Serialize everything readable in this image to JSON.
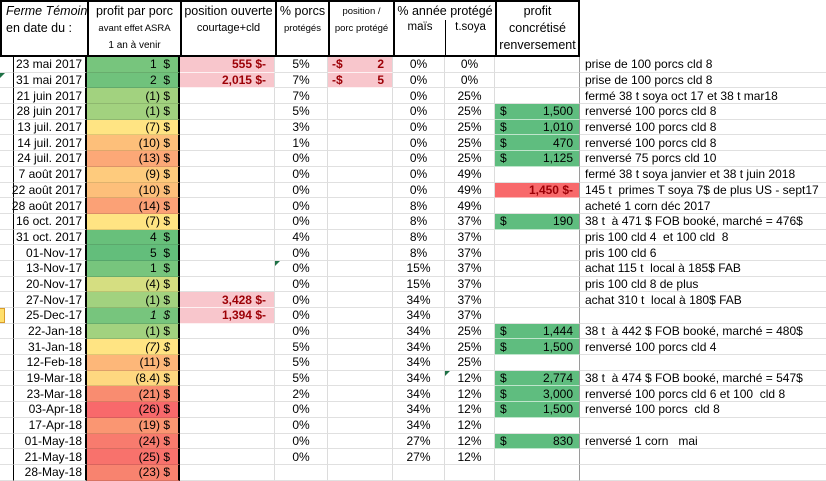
{
  "header": {
    "title": "Ferme Témoin",
    "subtitle": "en date du :",
    "profit_l1": "profit par porc",
    "profit_l2": "avant effet ASRA",
    "profit_l3": "1 an à venir",
    "position_l1": "position ouverte",
    "position_l2": "courtage+cld",
    "pct_l1": "% porcs",
    "pct_l2": "protégés",
    "ppp_l1": "position /",
    "ppp_l2": "porc protégé",
    "year_l1": "% année protégé",
    "corn_label": "maïs",
    "soya_label": "t.soya",
    "real_l1": "profit",
    "real_l2": "concrétisé",
    "real_l3": "renversement"
  },
  "symbols": {
    "currency": "$",
    "negative_currency": "-$"
  },
  "colors": {
    "pink_bg": "#F8C6CC",
    "negative_text": "#9C0006",
    "gain_bg": "#5FBD7F",
    "loss_bg": "#F8696B",
    "border": "#000000",
    "flag_green": "#1E7145",
    "marker_yellow": "#FFDF6B"
  },
  "rows": [
    {
      "date": "23 mai 2017",
      "profit": "1  $",
      "profit_color": "#77C57D",
      "open_position": "555 $-",
      "pct_pigs": "5%",
      "pos_per_pig": "2",
      "corn": "0%",
      "soya": "0%",
      "note": "prise de 100 porcs cld 8"
    },
    {
      "date": "31 mai 2017",
      "profit": "2  $",
      "profit_color": "#70C27C",
      "open_position": "2,015 $-",
      "pct_pigs": "7%",
      "pos_per_pig": "5",
      "corn": "0%",
      "soya": "0%",
      "flag_a": true,
      "note": "prise de 100 porcs cld 8"
    },
    {
      "date": "21 juin 2017",
      "profit": "(1) $",
      "profit_color": "#A2D27F",
      "pct_pigs": "7%",
      "corn": "0%",
      "soya": "25%",
      "note": "fermé 38 t soya oct 17 et 38 t mar18"
    },
    {
      "date": "28 juin 2017",
      "profit": "(1) $",
      "profit_color": "#A2D27F",
      "pct_pigs": "5%",
      "corn": "0%",
      "soya": "25%",
      "gain": "1,500",
      "note": "renversé 100 porcs cld 8"
    },
    {
      "date": "13 juil. 2017",
      "profit": "(7) $",
      "profit_color": "#FFE483",
      "pct_pigs": "3%",
      "corn": "0%",
      "soya": "25%",
      "gain": "1,010",
      "note": "renversé 100 porcs cld 8"
    },
    {
      "date": "14 juil. 2017",
      "profit": "(10) $",
      "profit_color": "#FDBF7A",
      "pct_pigs": "1%",
      "corn": "0%",
      "soya": "25%",
      "gain": "470",
      "note": "renversé 100 porcs cld 8"
    },
    {
      "date": "24 juil. 2017",
      "profit": "(13) $",
      "profit_color": "#FCA877",
      "pct_pigs": "0%",
      "corn": "0%",
      "soya": "25%",
      "gain": "1,125",
      "note": "renversé 75 porcs cld 10"
    },
    {
      "date": "7 août 2017",
      "profit": "(9) $",
      "profit_color": "#FECB7D",
      "pct_pigs": "0%",
      "corn": "0%",
      "soya": "49%",
      "note": "fermé 38 t soya janvier et 38 t juin 2018"
    },
    {
      "date": "22 août 2017",
      "profit": "(10) $",
      "profit_color": "#FDBF7A",
      "pct_pigs": "0%",
      "corn": "0%",
      "soya": "49%",
      "loss": "1,450 $-",
      "note": "145 t  primes T soya 7$ de plus US - sept17"
    },
    {
      "date": "28 août 2017",
      "profit": "(14) $",
      "profit_color": "#FBA176",
      "pct_pigs": "0%",
      "corn": "8%",
      "soya": "49%",
      "note": "acheté 1 corn déc 2017"
    },
    {
      "date": "16 oct. 2017",
      "profit": "(7) $",
      "profit_color": "#FFE483",
      "pct_pigs": "0%",
      "corn": "8%",
      "soya": "37%",
      "gain": "190",
      "note": "38 t  à 471 $ FOB booké, marché = 476$"
    },
    {
      "date": "31 oct. 2017",
      "profit": "4  $",
      "profit_color": "#68C07B",
      "pct_pigs": "4%",
      "corn": "8%",
      "soya": "37%",
      "note": "pris 100 cld 4  et 100 cld  8"
    },
    {
      "date": "01-Nov-17",
      "profit": "5  $",
      "profit_color": "#63BE7B",
      "pct_pigs": "0%",
      "corn": "8%",
      "soya": "37%",
      "note": "pris 100 cld 6"
    },
    {
      "date": "13-Nov-17",
      "profit": "1  $",
      "profit_color": "#77C57D",
      "pct_pigs": "0%",
      "flag_pct": true,
      "corn": "15%",
      "soya": "37%",
      "note": "achat 115 t  local à 185$ FAB"
    },
    {
      "date": "20-Nov-17",
      "profit": "(4) $",
      "profit_color": "#D5DE81",
      "pct_pigs": "0%",
      "corn": "15%",
      "soya": "37%",
      "note": "pris 100 cld 8 de plus"
    },
    {
      "date": "27-Nov-17",
      "profit": "(1) $",
      "profit_color": "#A2D27F",
      "open_position": "3,428 $-",
      "pct_pigs": "0%",
      "corn": "34%",
      "soya": "37%",
      "note": "achat 310 t  local à 180$ FAB"
    },
    {
      "date": "25-Dec-17",
      "profit": "1  $",
      "profit_color": "#77C57D",
      "profit_italic": true,
      "open_position": "1,394 $-",
      "pct_pigs": "0%",
      "corn": "34%",
      "soya": "37%",
      "yellow_a": true,
      "note": ""
    },
    {
      "date": "22-Jan-18",
      "profit": "(1) $",
      "profit_color": "#A2D27F",
      "pct_pigs": "0%",
      "corn": "34%",
      "soya": "25%",
      "gain": "1,444",
      "note": "38 t  à 442 $ FOB booké, marché = 480$"
    },
    {
      "date": "31-Jan-18",
      "profit": "(7) $",
      "profit_color": "#FFE483",
      "profit_italic": true,
      "pct_pigs": "5%",
      "corn": "34%",
      "soya": "25%",
      "gain": "1,500",
      "note": "renversé 100 porcs cld 4"
    },
    {
      "date": "12-Feb-18",
      "profit": "(11) $",
      "profit_color": "#FDB779",
      "pct_pigs": "5%",
      "corn": "34%",
      "soya": "25%",
      "note": ""
    },
    {
      "date": "19-Mar-18",
      "profit": "(8.4) $",
      "profit_color": "#FED880",
      "pct_pigs": "5%",
      "corn": "34%",
      "soya": "12%",
      "flag_soya": true,
      "gain": "2,774",
      "note": "38 t  à 474 $ FOB booké, marché = 547$"
    },
    {
      "date": "23-Mar-18",
      "profit": "(21) $",
      "profit_color": "#F98C70",
      "pct_pigs": "2%",
      "corn": "34%",
      "soya": "12%",
      "gain": "3,000",
      "note": "renversé 100 porcs cld 6 et 100  cld 8"
    },
    {
      "date": "03-Apr-18",
      "profit": "(26) $",
      "profit_color": "#F8696B",
      "pct_pigs": "0%",
      "corn": "34%",
      "soya": "12%",
      "gain": "1,500",
      "note": "renversé 100 porcs  cld 8"
    },
    {
      "date": "17-Apr-18",
      "profit": "(19) $",
      "profit_color": "#FA9672",
      "pct_pigs": "0%",
      "corn": "34%",
      "soya": "12%",
      "note": ""
    },
    {
      "date": "01-May-18",
      "profit": "(24) $",
      "profit_color": "#F87B6E",
      "pct_pigs": "0%",
      "corn": "27%",
      "soya": "12%",
      "gain": "830",
      "note": "renversé 1 corn   mai"
    },
    {
      "date": "21-May-18",
      "profit": "(25) $",
      "profit_color": "#F8726C",
      "pct_pigs": "0%",
      "corn": "27%",
      "soya": "12%",
      "note": ""
    },
    {
      "date": "28-May-18",
      "profit": "(23) $",
      "profit_color": "#F8836F",
      "pct_pigs": "",
      "corn": "",
      "soya": "",
      "note": ""
    }
  ]
}
